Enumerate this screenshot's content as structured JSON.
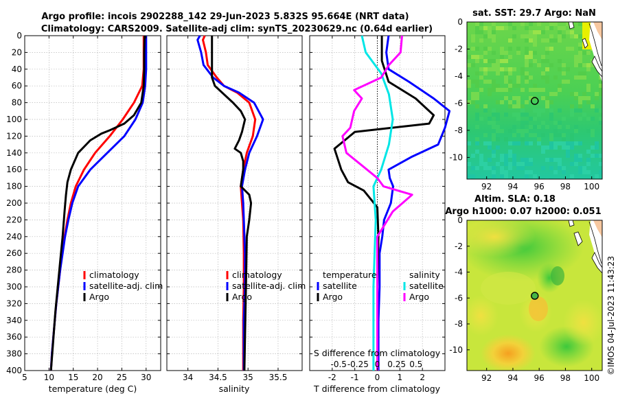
{
  "figure": {
    "title_line1": "Argo profile: incois 2902288_142 29-Jun-2023 5.832S 95.664E (NRT data)",
    "title_line2": "Climatology: CARS2009. Satellite-adj clim: synTS_20230629.nc (0.64d earlier)",
    "credit": "©IMOS 04-Jul-2023 11:43:23"
  },
  "chart_data": [
    {
      "id": "temperature",
      "type": "line",
      "xlabel": "temperature (deg C)",
      "xlim": [
        5,
        33
      ],
      "xticks": [
        5,
        10,
        15,
        20,
        25,
        30
      ],
      "ylim": [
        400,
        0
      ],
      "yticks": [
        0,
        20,
        40,
        60,
        80,
        100,
        120,
        140,
        160,
        180,
        200,
        220,
        240,
        260,
        280,
        300,
        320,
        340,
        360,
        380,
        400
      ],
      "grid": true,
      "legend": [
        "climatology",
        "satellite-adj. clim",
        "Argo"
      ],
      "series": [
        {
          "name": "climatology",
          "color": "#ff0000",
          "points": [
            [
              29.5,
              0
            ],
            [
              29.5,
              20
            ],
            [
              29.5,
              40
            ],
            [
              29.2,
              60
            ],
            [
              27.5,
              80
            ],
            [
              25.2,
              100
            ],
            [
              22.5,
              120
            ],
            [
              19.5,
              140
            ],
            [
              17.2,
              160
            ],
            [
              15.5,
              180
            ],
            [
              14.5,
              200
            ],
            [
              13.8,
              220
            ],
            [
              13.2,
              240
            ],
            [
              12.7,
              260
            ],
            [
              12.3,
              280
            ],
            [
              11.9,
              300
            ],
            [
              11.5,
              320
            ],
            [
              11.2,
              340
            ],
            [
              10.9,
              360
            ],
            [
              10.6,
              380
            ],
            [
              10.4,
              400
            ]
          ]
        },
        {
          "name": "satellite-adj. clim",
          "color": "#0000ff",
          "points": [
            [
              30,
              0
            ],
            [
              30,
              20
            ],
            [
              30,
              40
            ],
            [
              29.8,
              60
            ],
            [
              29.3,
              80
            ],
            [
              27.8,
              100
            ],
            [
              25.5,
              120
            ],
            [
              22,
              140
            ],
            [
              18.5,
              160
            ],
            [
              16,
              180
            ],
            [
              14.8,
              200
            ],
            [
              14,
              220
            ],
            [
              13.3,
              240
            ],
            [
              12.8,
              260
            ],
            [
              12.3,
              280
            ],
            [
              11.9,
              300
            ],
            [
              11.5,
              320
            ],
            [
              11.2,
              340
            ],
            [
              10.9,
              360
            ],
            [
              10.6,
              380
            ],
            [
              10.4,
              400
            ]
          ]
        },
        {
          "name": "Argo",
          "color": "#000000",
          "points": [
            [
              29.7,
              0
            ],
            [
              29.6,
              20
            ],
            [
              29.6,
              40
            ],
            [
              29.5,
              60
            ],
            [
              29,
              80
            ],
            [
              27.5,
              95
            ],
            [
              25.5,
              105
            ],
            [
              22.5,
              113
            ],
            [
              20.8,
              117
            ],
            [
              18.5,
              125
            ],
            [
              16,
              140
            ],
            [
              14.5,
              160
            ],
            [
              13.8,
              175
            ],
            [
              13.5,
              190
            ],
            [
              13.2,
              210
            ],
            [
              12.8,
              240
            ],
            [
              12.3,
              270
            ],
            [
              11.8,
              300
            ],
            [
              11.3,
              330
            ],
            [
              10.8,
              370
            ],
            [
              10.4,
              400
            ]
          ]
        }
      ]
    },
    {
      "id": "salinity",
      "type": "line",
      "xlabel": "salinity",
      "xlim": [
        33.65,
        35.9
      ],
      "xticks": [
        34,
        34.5,
        35,
        35.5
      ],
      "ylim": [
        400,
        0
      ],
      "grid": true,
      "legend": [
        "climatology",
        "satellite-adj. clim",
        "Argo"
      ],
      "series": [
        {
          "name": "climatology",
          "color": "#ff0000",
          "points": [
            [
              34.28,
              0
            ],
            [
              34.25,
              5
            ],
            [
              34.3,
              20
            ],
            [
              34.33,
              35
            ],
            [
              34.48,
              50
            ],
            [
              34.6,
              60
            ],
            [
              34.82,
              68
            ],
            [
              35.02,
              80
            ],
            [
              35.12,
              100
            ],
            [
              35.08,
              120
            ],
            [
              34.98,
              140
            ],
            [
              34.92,
              160
            ],
            [
              34.88,
              180
            ],
            [
              34.9,
              200
            ],
            [
              34.92,
              220
            ],
            [
              34.93,
              260
            ],
            [
              34.93,
              300
            ],
            [
              34.92,
              340
            ],
            [
              34.92,
              400
            ]
          ]
        },
        {
          "name": "satellite-adj. clim",
          "color": "#0000ff",
          "points": [
            [
              34.2,
              0
            ],
            [
              34.16,
              5
            ],
            [
              34.22,
              20
            ],
            [
              34.26,
              35
            ],
            [
              34.42,
              50
            ],
            [
              34.6,
              60
            ],
            [
              34.85,
              68
            ],
            [
              35.1,
              80
            ],
            [
              35.25,
              100
            ],
            [
              35.15,
              120
            ],
            [
              35.02,
              140
            ],
            [
              34.95,
              160
            ],
            [
              34.9,
              180
            ],
            [
              34.92,
              200
            ],
            [
              34.93,
              220
            ],
            [
              34.95,
              260
            ],
            [
              34.95,
              300
            ],
            [
              34.93,
              340
            ],
            [
              34.93,
              400
            ]
          ]
        },
        {
          "name": "Argo",
          "color": "#000000",
          "points": [
            [
              34.4,
              0
            ],
            [
              34.4,
              25
            ],
            [
              34.4,
              50
            ],
            [
              34.45,
              60
            ],
            [
              34.75,
              80
            ],
            [
              34.88,
              90
            ],
            [
              34.95,
              100
            ],
            [
              34.9,
              115
            ],
            [
              34.85,
              125
            ],
            [
              34.78,
              135
            ],
            [
              34.88,
              140
            ],
            [
              34.92,
              150
            ],
            [
              34.92,
              160
            ],
            [
              34.9,
              170
            ],
            [
              34.88,
              180
            ],
            [
              35.02,
              190
            ],
            [
              35.05,
              200
            ],
            [
              35.02,
              220
            ],
            [
              34.98,
              240
            ],
            [
              34.97,
              280
            ],
            [
              34.96,
              320
            ],
            [
              34.95,
              360
            ],
            [
              34.94,
              400
            ]
          ]
        }
      ]
    },
    {
      "id": "difference",
      "type": "line",
      "xlabel": "T difference from climatology",
      "xlabel_top": "S difference from climatology",
      "xlim": [
        -3,
        3
      ],
      "xticks": [
        -2,
        -1,
        0,
        1,
        2
      ],
      "xlim_s": [
        -0.875,
        0.875
      ],
      "xticks_s": [
        -0.5,
        -0.25,
        0,
        0.25,
        0.5
      ],
      "xticklabels_s": [
        "-0.5",
        "-0.25",
        "0",
        "0.25",
        "0.5"
      ],
      "ylim": [
        400,
        0
      ],
      "grid": true,
      "legend_left_header": "temperature",
      "legend_right_header": "salinity",
      "legend": [
        "satellite",
        "Argo",
        "satellite",
        "Argo"
      ],
      "series": [
        {
          "name": "temperature satellite",
          "color": "#0000ff",
          "axis": "T",
          "points": [
            [
              0.5,
              0
            ],
            [
              0.4,
              20
            ],
            [
              0.5,
              40
            ],
            [
              1.4,
              55
            ],
            [
              2.5,
              75
            ],
            [
              3.2,
              90
            ],
            [
              3,
              110
            ],
            [
              2.7,
              130
            ],
            [
              1.5,
              145
            ],
            [
              0.5,
              160
            ],
            [
              0.55,
              170
            ],
            [
              0.7,
              180
            ],
            [
              0.6,
              200
            ],
            [
              0.3,
              220
            ],
            [
              0.22,
              240
            ],
            [
              0.1,
              260
            ],
            [
              0.1,
              300
            ],
            [
              0.05,
              340
            ],
            [
              0.05,
              400
            ]
          ]
        },
        {
          "name": "temperature Argo",
          "color": "#000000",
          "axis": "T",
          "points": [
            [
              0.2,
              0
            ],
            [
              0.2,
              30
            ],
            [
              0.5,
              55
            ],
            [
              1.7,
              75
            ],
            [
              2.5,
              95
            ],
            [
              2.3,
              105
            ],
            [
              -1,
              115
            ],
            [
              -1.9,
              135
            ],
            [
              -1.6,
              160
            ],
            [
              -1.3,
              175
            ],
            [
              -0.6,
              185
            ],
            [
              0,
              205
            ],
            [
              0.05,
              240
            ],
            [
              0,
              300
            ],
            [
              0,
              400
            ]
          ]
        },
        {
          "name": "salinity satellite",
          "color": "#00e6e6",
          "axis": "S",
          "points": [
            [
              -0.2,
              0
            ],
            [
              -0.15,
              20
            ],
            [
              0.05,
              45
            ],
            [
              0.15,
              70
            ],
            [
              0.2,
              100
            ],
            [
              0.15,
              130
            ],
            [
              0.05,
              160
            ],
            [
              -0.05,
              180
            ],
            [
              -0.02,
              220
            ],
            [
              -0.05,
              300
            ],
            [
              -0.05,
              400
            ]
          ]
        },
        {
          "name": "salinity Argo",
          "color": "#ff00ff",
          "axis": "S",
          "points": [
            [
              0.32,
              0
            ],
            [
              0.3,
              20
            ],
            [
              0.15,
              35
            ],
            [
              0.05,
              50
            ],
            [
              -0.3,
              65
            ],
            [
              -0.2,
              75
            ],
            [
              -0.3,
              90
            ],
            [
              -0.35,
              110
            ],
            [
              -0.45,
              120
            ],
            [
              -0.4,
              140
            ],
            [
              -0.2,
              155
            ],
            [
              0,
              170
            ],
            [
              0.08,
              180
            ],
            [
              0.45,
              190
            ],
            [
              0.2,
              210
            ],
            [
              0,
              240
            ],
            [
              0,
              300
            ],
            [
              0,
              400
            ]
          ]
        }
      ]
    },
    {
      "id": "sst_map",
      "type": "heatmap",
      "title": "sat. SST: 29.7 Argo: NaN",
      "xlim": [
        90.5,
        100.8
      ],
      "ylim": [
        -11.6,
        0
      ],
      "xticks": [
        92,
        94,
        96,
        98,
        100
      ],
      "yticks": [
        0,
        -2,
        -4,
        -6,
        -8,
        -10
      ],
      "marker": {
        "lon": 95.664,
        "lat": -5.832
      }
    },
    {
      "id": "sla_map",
      "type": "heatmap",
      "title": "Altim. SLA: 0.18",
      "subtitle": "Argo h1000: 0.07 h2000: 0.051",
      "xlim": [
        90.5,
        100.8
      ],
      "ylim": [
        -11.6,
        0
      ],
      "xticks": [
        92,
        94,
        96,
        98,
        100
      ],
      "yticks": [
        0,
        -2,
        -4,
        -6,
        -8,
        -10
      ],
      "marker": {
        "lon": 95.664,
        "lat": -5.832
      }
    }
  ]
}
